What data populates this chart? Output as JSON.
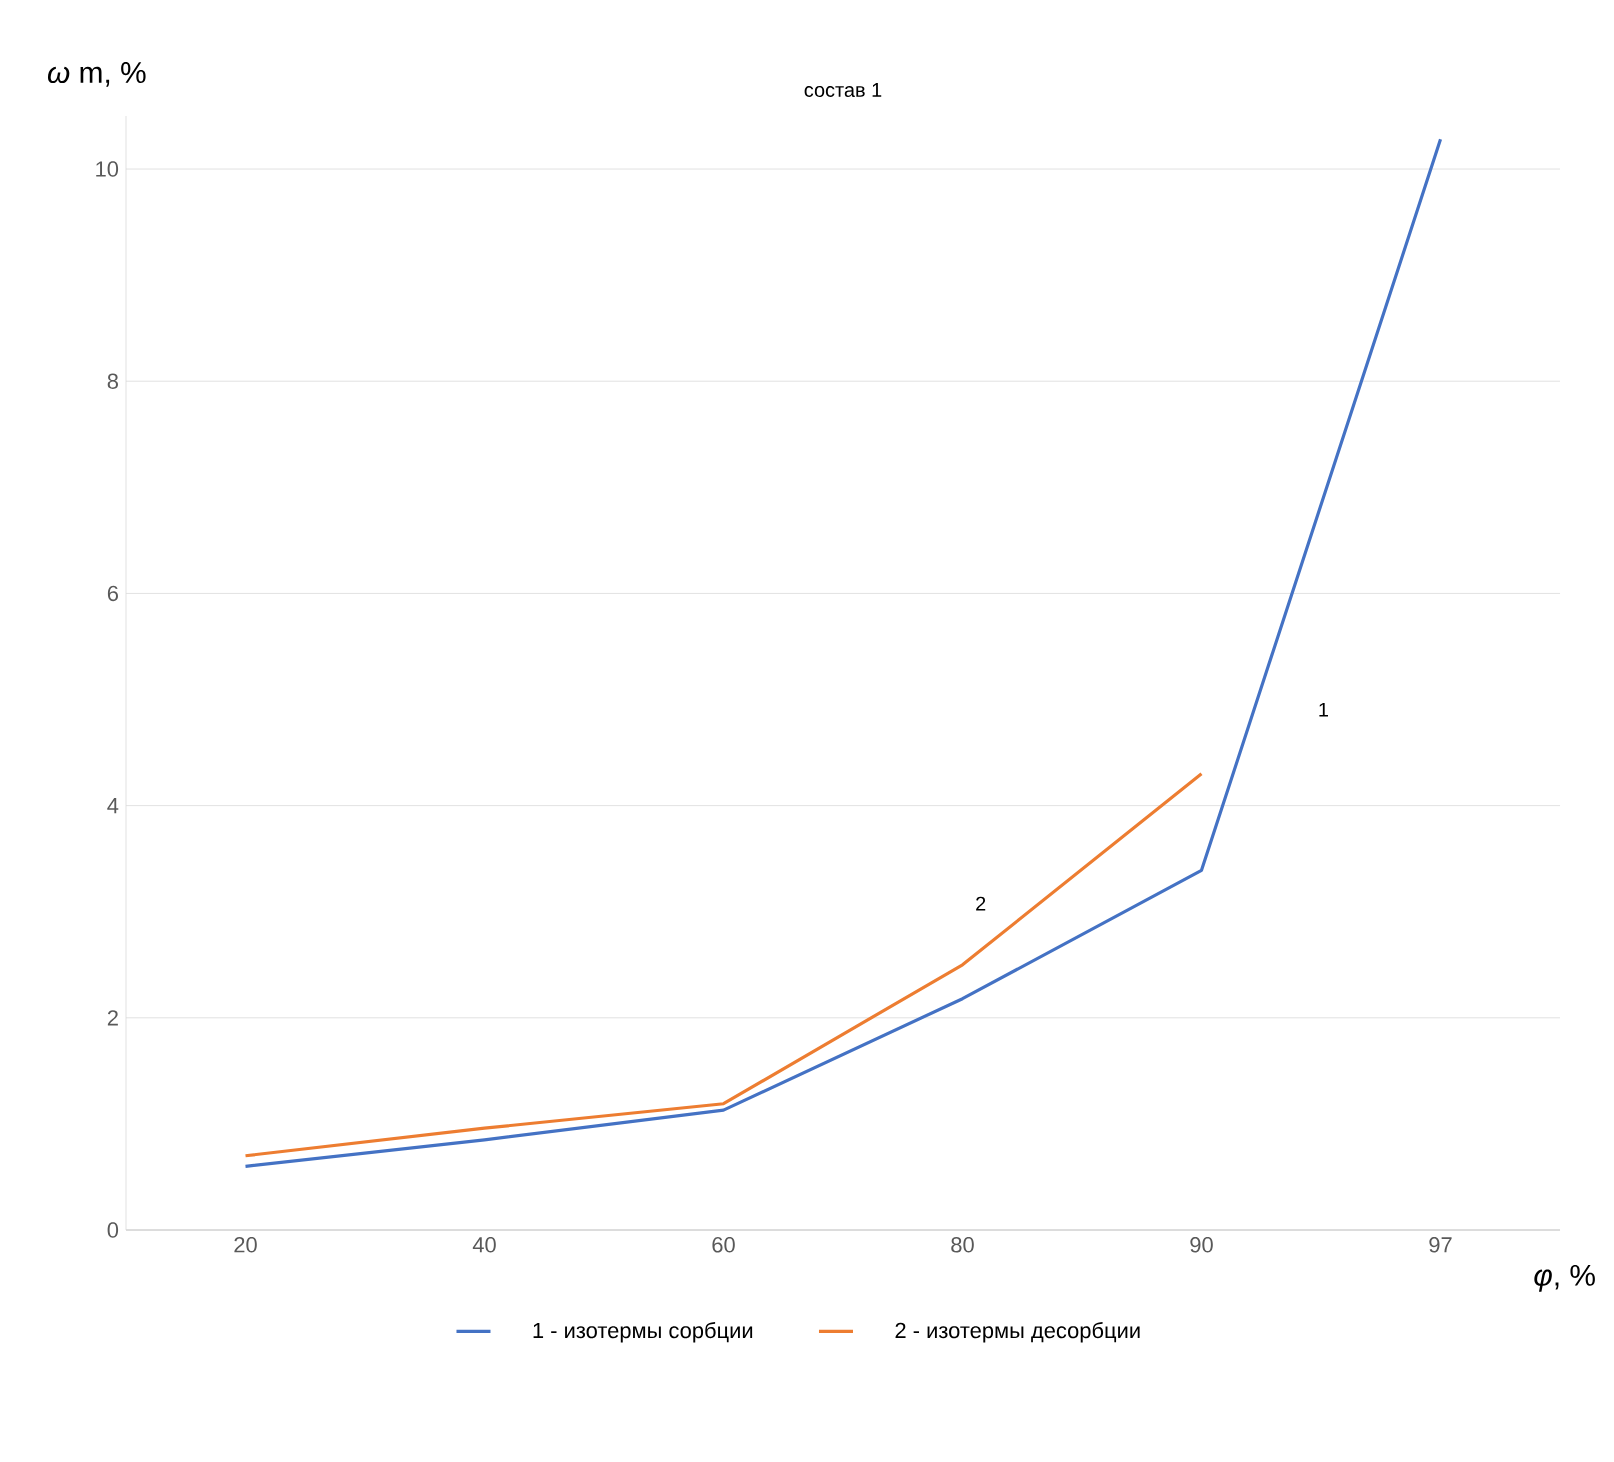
{
  "chart_data": {
    "type": "line",
    "title": "состав 1",
    "xlabel": "*φ*, %",
    "ylabel": "*ω* m, %",
    "categories": [
      "20",
      "40",
      "60",
      "80",
      "90",
      "97"
    ],
    "series": [
      {
        "name": "1 - изотермы сорбции",
        "color": "#4472c4",
        "values": [
          0.6,
          0.85,
          1.13,
          2.18,
          3.39,
          10.28
        ]
      },
      {
        "name": "2 - изотермы десорбции",
        "color": "#ed7d31",
        "values": [
          0.7,
          0.96,
          1.19,
          2.5,
          4.3,
          null
        ]
      }
    ],
    "ylim": [
      0,
      10.5
    ],
    "yticks": [
      0,
      2,
      4,
      6,
      8,
      10
    ],
    "grid": "y",
    "legend": "bottom",
    "annotations": [
      "1",
      "2"
    ]
  }
}
